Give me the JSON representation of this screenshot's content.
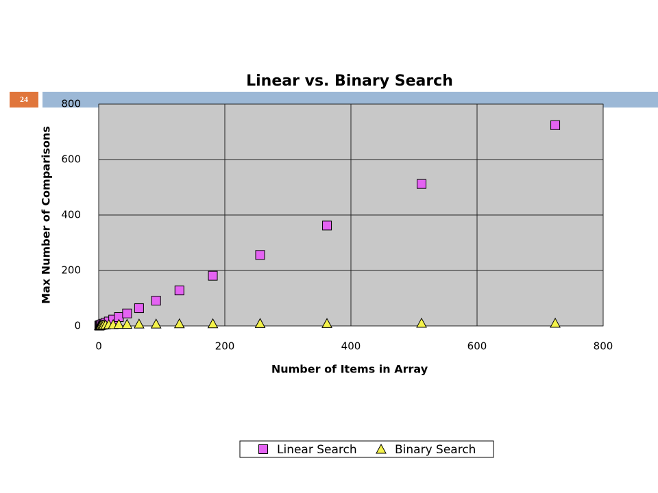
{
  "slide": {
    "number": "24"
  },
  "chart_data": {
    "type": "scatter",
    "title": "Linear vs. Binary Search",
    "x_label": "Number of Items in Array",
    "y_label": "Max Number of Comparisons",
    "x": [
      1,
      2,
      3,
      4,
      6,
      8,
      11,
      16,
      23,
      32,
      45,
      64,
      91,
      128,
      181,
      256,
      362,
      512,
      724
    ],
    "series": [
      {
        "name": "Linear Search",
        "color": "#e463f2",
        "marker": "square",
        "values": [
          1,
          2,
          3,
          4,
          6,
          8,
          11,
          16,
          23,
          32,
          45,
          64,
          91,
          128,
          181,
          256,
          362,
          512,
          724
        ]
      },
      {
        "name": "Binary Search",
        "color": "#f4f24a",
        "marker": "triangle",
        "values": [
          1,
          2,
          3,
          3,
          3,
          4,
          4,
          5,
          5,
          6,
          6,
          7,
          7,
          8,
          8,
          9,
          9,
          10,
          10
        ]
      }
    ],
    "xlim": [
      0,
      800
    ],
    "xticks": [
      0,
      200,
      400,
      600,
      800
    ],
    "ylim": [
      0,
      800
    ],
    "yticks": [
      0,
      200,
      400,
      600,
      800
    ],
    "grid": true,
    "legend": "bottom",
    "plot_background": "#c8c8c8"
  }
}
